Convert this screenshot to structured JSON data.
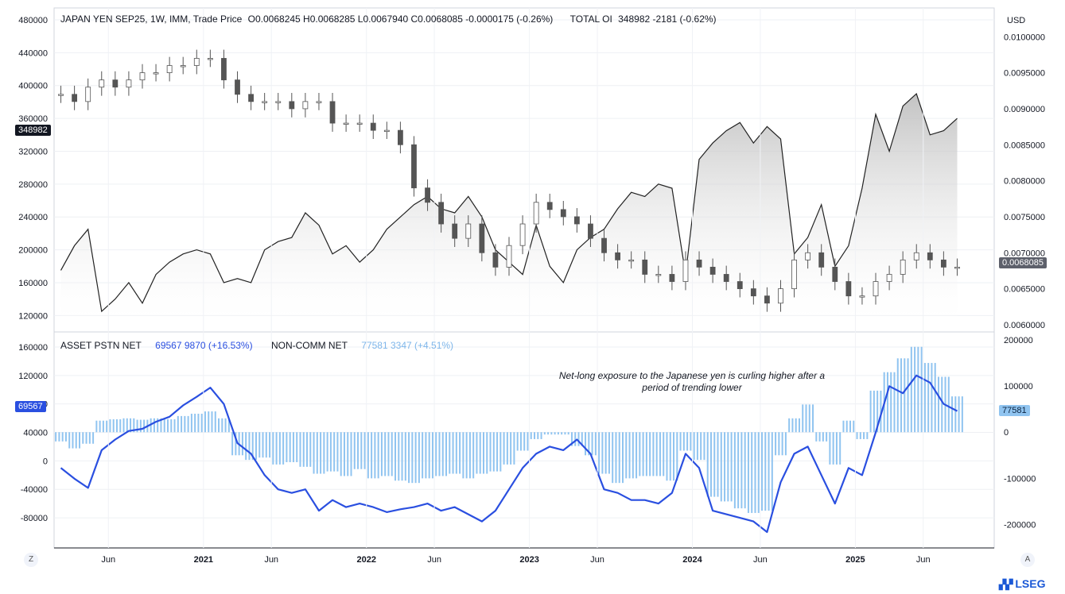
{
  "top_header": {
    "symbol": "JAPAN YEN SEP25, 1W, IMM, Trade Price",
    "ohlc": "O0.0068245  H0.0068285  L0.0067940  C0.0068085  -0.0000175 (-0.26%)",
    "oi_label": "TOTAL OI",
    "oi_value": "348982  -2181 (-0.62%)"
  },
  "currency": "USD",
  "bottom_header": {
    "asset_label": "ASSET PSTN NET",
    "asset_value": "69567  9870 (+16.53%)",
    "noncomm_label": "NON-COMM NET",
    "noncomm_value": "77581  3347 (+4.51%)"
  },
  "annotation": "Net-long exposure to the Japanese yen is curling higher after a period of trending lower",
  "tags": {
    "oi": "348982",
    "price": "0.0068085",
    "asset": "69567",
    "noncomm": "77581"
  },
  "x_ticks": [
    "Jun",
    "2021",
    "Jun",
    "2022",
    "Jun",
    "2023",
    "Jun",
    "2024",
    "Jun",
    "2025",
    "Jun"
  ],
  "corner_left": "Z",
  "corner_right": "A",
  "brand": "LSEG",
  "colors": {
    "asset": "#2a4fe0",
    "noncomm": "#90c4f0",
    "candles": "#555555",
    "oi": "#222222"
  },
  "chart_data": [
    {
      "type": "line",
      "title": "JAPAN YEN SEP25, 1W, IMM, Trade Price",
      "left_axis": {
        "label": "TOTAL OI",
        "ticks": [
          120000,
          160000,
          200000,
          240000,
          280000,
          320000,
          360000,
          400000,
          440000,
          480000
        ],
        "ylim": [
          100000,
          480000
        ]
      },
      "right_axis": {
        "label": "USD",
        "ticks": [
          0.006,
          0.0065,
          0.007,
          0.0075,
          0.008,
          0.0085,
          0.009,
          0.0095,
          0.01
        ],
        "ylim": [
          0.0059,
          0.0104
        ]
      },
      "x_range": [
        "2020-02",
        "2025-08"
      ],
      "series": [
        {
          "name": "TOTAL OI",
          "axis": "left",
          "x": [
            "2020-02",
            "2020-03",
            "2020-04",
            "2020-05",
            "2020-06",
            "2020-07",
            "2020-08",
            "2020-09",
            "2020-10",
            "2020-11",
            "2020-12",
            "2021-01",
            "2021-02",
            "2021-03",
            "2021-04",
            "2021-05",
            "2021-06",
            "2021-07",
            "2021-08",
            "2021-09",
            "2021-10",
            "2021-11",
            "2021-12",
            "2022-01",
            "2022-02",
            "2022-03",
            "2022-04",
            "2022-05",
            "2022-06",
            "2022-07",
            "2022-08",
            "2022-09",
            "2022-10",
            "2022-11",
            "2022-12",
            "2023-01",
            "2023-02",
            "2023-03",
            "2023-04",
            "2023-05",
            "2023-06",
            "2023-07",
            "2023-08",
            "2023-09",
            "2023-10",
            "2023-11",
            "2023-12",
            "2024-01",
            "2024-02",
            "2024-03",
            "2024-04",
            "2024-05",
            "2024-06",
            "2024-07",
            "2024-08",
            "2024-09",
            "2024-10",
            "2024-11",
            "2024-12",
            "2025-01",
            "2025-02",
            "2025-03",
            "2025-04",
            "2025-05",
            "2025-06",
            "2025-07",
            "2025-08"
          ],
          "values": [
            175000,
            205000,
            225000,
            125000,
            140000,
            160000,
            135000,
            170000,
            185000,
            195000,
            200000,
            195000,
            160000,
            165000,
            160000,
            200000,
            210000,
            215000,
            245000,
            230000,
            195000,
            205000,
            185000,
            200000,
            225000,
            240000,
            255000,
            265000,
            250000,
            245000,
            265000,
            240000,
            200000,
            185000,
            170000,
            230000,
            180000,
            160000,
            200000,
            215000,
            225000,
            250000,
            270000,
            265000,
            280000,
            275000,
            170000,
            310000,
            330000,
            345000,
            355000,
            330000,
            350000,
            335000,
            195000,
            215000,
            255000,
            180000,
            205000,
            275000,
            365000,
            320000,
            375000,
            390000,
            340000,
            345000,
            360000
          ]
        },
        {
          "name": "JAPAN YEN SEP25",
          "axis": "right",
          "x": [
            "2020-02",
            "2020-03",
            "2020-04",
            "2020-05",
            "2020-06",
            "2020-07",
            "2020-08",
            "2020-09",
            "2020-10",
            "2020-11",
            "2020-12",
            "2021-01",
            "2021-02",
            "2021-03",
            "2021-04",
            "2021-05",
            "2021-06",
            "2021-07",
            "2021-08",
            "2021-09",
            "2021-10",
            "2021-11",
            "2021-12",
            "2022-01",
            "2022-02",
            "2022-03",
            "2022-04",
            "2022-05",
            "2022-06",
            "2022-07",
            "2022-08",
            "2022-09",
            "2022-10",
            "2022-11",
            "2022-12",
            "2023-01",
            "2023-02",
            "2023-03",
            "2023-04",
            "2023-05",
            "2023-06",
            "2023-07",
            "2023-08",
            "2023-09",
            "2023-10",
            "2023-11",
            "2023-12",
            "2024-01",
            "2024-02",
            "2024-03",
            "2024-04",
            "2024-05",
            "2024-06",
            "2024-07",
            "2024-08",
            "2024-09",
            "2024-10",
            "2024-11",
            "2024-12",
            "2025-01",
            "2025-02",
            "2025-03",
            "2025-04",
            "2025-05",
            "2025-06",
            "2025-07",
            "2025-08"
          ],
          "values": [
            0.0092,
            0.0091,
            0.0093,
            0.0094,
            0.0093,
            0.0094,
            0.0095,
            0.0095,
            0.0096,
            0.0096,
            0.0097,
            0.0097,
            0.0094,
            0.0092,
            0.0091,
            0.0091,
            0.0091,
            0.009,
            0.0091,
            0.0091,
            0.0088,
            0.0088,
            0.0088,
            0.0087,
            0.0087,
            0.0085,
            0.0079,
            0.0077,
            0.0074,
            0.0072,
            0.0074,
            0.007,
            0.0068,
            0.0071,
            0.0074,
            0.0077,
            0.0076,
            0.0075,
            0.0074,
            0.0072,
            0.007,
            0.0069,
            0.0069,
            0.0067,
            0.0067,
            0.0066,
            0.0069,
            0.0068,
            0.0067,
            0.0066,
            0.0065,
            0.0064,
            0.0063,
            0.0065,
            0.0069,
            0.007,
            0.0068,
            0.0066,
            0.0064,
            0.0064,
            0.0066,
            0.0067,
            0.0069,
            0.007,
            0.0069,
            0.0068,
            0.0068
          ]
        }
      ]
    },
    {
      "type": "bar",
      "left_axis": {
        "ticks": [
          -80000,
          -40000,
          0,
          40000,
          80000,
          120000,
          160000
        ],
        "ylim": [
          -100000,
          170000
        ]
      },
      "right_axis": {
        "ticks": [
          -200000,
          -100000,
          0,
          100000,
          200000
        ],
        "ylim": [
          -225000,
          200000
        ]
      },
      "x_range": [
        "2020-02",
        "2025-08"
      ],
      "series": [
        {
          "name": "ASSET PSTN NET",
          "type": "line",
          "axis": "left",
          "x": [
            "2020-02",
            "2020-03",
            "2020-04",
            "2020-05",
            "2020-06",
            "2020-07",
            "2020-08",
            "2020-09",
            "2020-10",
            "2020-11",
            "2020-12",
            "2021-01",
            "2021-02",
            "2021-03",
            "2021-04",
            "2021-05",
            "2021-06",
            "2021-07",
            "2021-08",
            "2021-09",
            "2021-10",
            "2021-11",
            "2021-12",
            "2022-01",
            "2022-02",
            "2022-03",
            "2022-04",
            "2022-05",
            "2022-06",
            "2022-07",
            "2022-08",
            "2022-09",
            "2022-10",
            "2022-11",
            "2022-12",
            "2023-01",
            "2023-02",
            "2023-03",
            "2023-04",
            "2023-05",
            "2023-06",
            "2023-07",
            "2023-08",
            "2023-09",
            "2023-10",
            "2023-11",
            "2023-12",
            "2024-01",
            "2024-02",
            "2024-03",
            "2024-04",
            "2024-05",
            "2024-06",
            "2024-07",
            "2024-08",
            "2024-09",
            "2024-10",
            "2024-11",
            "2024-12",
            "2025-01",
            "2025-02",
            "2025-03",
            "2025-04",
            "2025-05",
            "2025-06",
            "2025-07",
            "2025-08"
          ],
          "values": [
            -10000,
            -25000,
            -38000,
            15000,
            30000,
            42000,
            45000,
            55000,
            62000,
            78000,
            90000,
            103000,
            80000,
            25000,
            10000,
            -20000,
            -40000,
            -45000,
            -40000,
            -70000,
            -55000,
            -65000,
            -60000,
            -65000,
            -72000,
            -68000,
            -65000,
            -60000,
            -70000,
            -65000,
            -75000,
            -85000,
            -70000,
            -40000,
            -10000,
            10000,
            20000,
            15000,
            30000,
            10000,
            -40000,
            -45000,
            -55000,
            -55000,
            -60000,
            -45000,
            10000,
            -10000,
            -70000,
            -75000,
            -80000,
            -85000,
            -100000,
            -30000,
            10000,
            20000,
            -20000,
            -60000,
            -10000,
            -20000,
            40000,
            105000,
            95000,
            120000,
            110000,
            80000,
            70000
          ]
        },
        {
          "name": "NON-COMM NET",
          "type": "bar",
          "axis": "right",
          "x": [
            "2020-02",
            "2020-03",
            "2020-04",
            "2020-05",
            "2020-06",
            "2020-07",
            "2020-08",
            "2020-09",
            "2020-10",
            "2020-11",
            "2020-12",
            "2021-01",
            "2021-02",
            "2021-03",
            "2021-04",
            "2021-05",
            "2021-06",
            "2021-07",
            "2021-08",
            "2021-09",
            "2021-10",
            "2021-11",
            "2021-12",
            "2022-01",
            "2022-02",
            "2022-03",
            "2022-04",
            "2022-05",
            "2022-06",
            "2022-07",
            "2022-08",
            "2022-09",
            "2022-10",
            "2022-11",
            "2022-12",
            "2023-01",
            "2023-02",
            "2023-03",
            "2023-04",
            "2023-05",
            "2023-06",
            "2023-07",
            "2023-08",
            "2023-09",
            "2023-10",
            "2023-11",
            "2023-12",
            "2024-01",
            "2024-02",
            "2024-03",
            "2024-04",
            "2024-05",
            "2024-06",
            "2024-07",
            "2024-08",
            "2024-09",
            "2024-10",
            "2024-11",
            "2024-12",
            "2025-01",
            "2025-02",
            "2025-03",
            "2025-04",
            "2025-05",
            "2025-06",
            "2025-07",
            "2025-08"
          ],
          "values": [
            -20000,
            -35000,
            -25000,
            25000,
            28000,
            30000,
            27000,
            30000,
            28000,
            35000,
            40000,
            45000,
            30000,
            -50000,
            -60000,
            -55000,
            -70000,
            -65000,
            -75000,
            -90000,
            -85000,
            -95000,
            -80000,
            -100000,
            -95000,
            -105000,
            -110000,
            -100000,
            -95000,
            -90000,
            -100000,
            -90000,
            -85000,
            -70000,
            -40000,
            -15000,
            -5000,
            -5000,
            -30000,
            -50000,
            -90000,
            -110000,
            -100000,
            -95000,
            -95000,
            -105000,
            -40000,
            -60000,
            -140000,
            -150000,
            -165000,
            -175000,
            -170000,
            -50000,
            30000,
            60000,
            -20000,
            -70000,
            25000,
            -15000,
            90000,
            130000,
            160000,
            185000,
            150000,
            120000,
            77581
          ]
        }
      ]
    }
  ]
}
